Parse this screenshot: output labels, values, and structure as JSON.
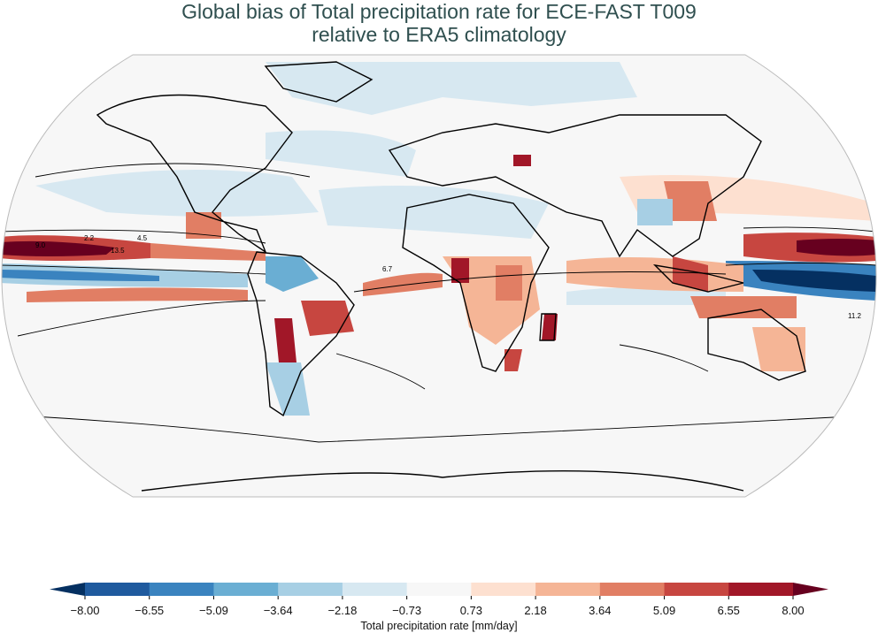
{
  "title_line1": "Global bias of Total precipitation rate for ECE-FAST T009",
  "title_line2": "relative to ERA5 climatology",
  "colorbar": {
    "label": "Total precipitation rate [mm/day]",
    "ticks": [
      "−8.00",
      "−6.55",
      "−5.09",
      "−3.64",
      "−2.18",
      "−0.73",
      "0.73",
      "2.18",
      "3.64",
      "5.09",
      "6.55",
      "8.00"
    ],
    "colors": [
      "#1f5a9e",
      "#3a83bf",
      "#6aaed3",
      "#a7cfe4",
      "#d7e8f1",
      "#f7f7f7",
      "#fde0d0",
      "#f5b596",
      "#e17e64",
      "#c74640",
      "#a11728"
    ],
    "under_color": "#053061",
    "over_color": "#67001f",
    "extend": "both"
  },
  "chart_data": {
    "type": "heatmap",
    "projection": "robinson",
    "levels": [
      -8.0,
      -6.55,
      -5.09,
      -3.64,
      -2.18,
      -0.73,
      0.73,
      2.18,
      3.64,
      5.09,
      6.55,
      8.0
    ],
    "contour_labels": [
      "2.2",
      "4.5",
      "6.7",
      "9.0",
      "11.2",
      "13.5"
    ]
  }
}
